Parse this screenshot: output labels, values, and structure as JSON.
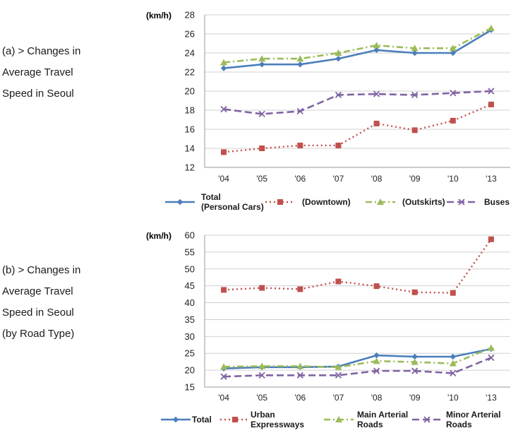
{
  "captions": {
    "a": [
      "(a) > Changes in",
      "Average Travel",
      "Speed in Seoul"
    ],
    "b": [
      "(b) > Changes in",
      "Average Travel",
      "Speed in Seoul",
      "(by Road Type)"
    ]
  },
  "chart_data": [
    {
      "type": "line",
      "ylabel": "(km/h)",
      "ylim": [
        12,
        28
      ],
      "yticks": [
        "12",
        "14",
        "16",
        "18",
        "20",
        "22",
        "24",
        "26",
        "28"
      ],
      "categories": [
        "'04",
        "'05",
        "'06",
        "'07",
        "'08",
        "'09",
        "'10",
        "'13"
      ],
      "grid": "horizontal",
      "legend": "bottom",
      "series": [
        {
          "name": [
            "Total",
            "(Personal Cars)"
          ],
          "values": [
            22.4,
            22.8,
            22.8,
            23.4,
            24.3,
            24.0,
            24.0,
            26.4
          ],
          "color": "#4a7ebb",
          "marker": "diamond",
          "dash": "solid"
        },
        {
          "name": [
            "(Downtown)"
          ],
          "values": [
            13.6,
            14.0,
            14.3,
            14.3,
            16.6,
            15.9,
            16.9,
            18.6
          ],
          "color": "#c0504d",
          "marker": "square",
          "dash": "dot"
        },
        {
          "name": [
            "(Outskirts)"
          ],
          "values": [
            23.0,
            23.4,
            23.4,
            24.0,
            24.8,
            24.5,
            24.5,
            26.6
          ],
          "color": "#9bbb59",
          "marker": "triangle",
          "dash": "dashdot"
        },
        {
          "name": [
            "Buses"
          ],
          "values": [
            18.1,
            17.6,
            17.9,
            19.6,
            19.7,
            19.6,
            19.8,
            20.0
          ],
          "color": "#8064a2",
          "marker": "x",
          "dash": "dash"
        }
      ]
    },
    {
      "type": "line",
      "ylabel": "(km/h)",
      "ylim": [
        15,
        60
      ],
      "yticks": [
        "15",
        "20",
        "25",
        "30",
        "35",
        "40",
        "45",
        "50",
        "55",
        "60"
      ],
      "categories": [
        "'04",
        "'05",
        "'06",
        "'07",
        "'08",
        "'09",
        "'10",
        "'13"
      ],
      "grid": "horizontal",
      "legend": "bottom",
      "series": [
        {
          "name": [
            "Total"
          ],
          "values": [
            20.5,
            20.9,
            20.9,
            21.1,
            24.4,
            24.0,
            24.0,
            26.3
          ],
          "color": "#4a7ebb",
          "marker": "diamond",
          "dash": "solid"
        },
        {
          "name": [
            "Urban",
            "Expressways"
          ],
          "values": [
            43.8,
            44.4,
            44.0,
            46.3,
            44.9,
            43.1,
            42.9,
            58.8
          ],
          "color": "#c0504d",
          "marker": "square",
          "dash": "dot"
        },
        {
          "name": [
            "Main Arterial",
            "Roads"
          ],
          "values": [
            21.0,
            21.2,
            21.2,
            20.9,
            22.7,
            22.4,
            22.0,
            26.6
          ],
          "color": "#9bbb59",
          "marker": "triangle",
          "dash": "dashdot"
        },
        {
          "name": [
            "Minor Arterial",
            "Roads"
          ],
          "values": [
            18.1,
            18.5,
            18.5,
            18.5,
            19.8,
            19.8,
            19.1,
            23.7
          ],
          "color": "#8064a2",
          "marker": "x",
          "dash": "dash"
        }
      ]
    }
  ]
}
